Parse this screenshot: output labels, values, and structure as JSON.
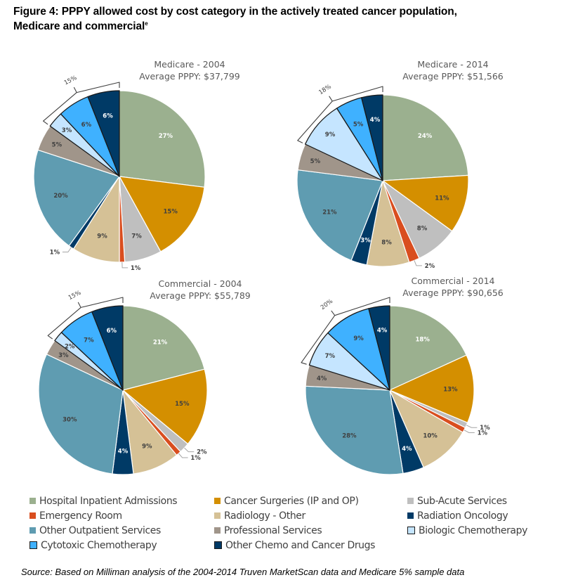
{
  "figure": {
    "title_line1": "Figure 4: PPPY allowed cost by cost category in the actively treated cancer population,",
    "title_line2": "Medicare and commercial",
    "title_footnote_marker": "e",
    "source": "Source: Based on Milliman analysis of the 2004-2014 Truven MarketScan data and Medicare 5% sample data"
  },
  "legend": {
    "items": [
      {
        "label": "Hospital Inpatient Admissions",
        "color": "#9BB08F",
        "outlined": false
      },
      {
        "label": "Cancer Surgeries (IP and OP)",
        "color": "#D48F00",
        "outlined": false
      },
      {
        "label": "Sub-Acute Services",
        "color": "#BFBFBF",
        "outlined": false
      },
      {
        "label": "Emergency Room",
        "color": "#D94E1F",
        "outlined": false
      },
      {
        "label": "Radiology - Other",
        "color": "#D5C196",
        "outlined": false
      },
      {
        "label": "Radiation Oncology",
        "color": "#003A66",
        "outlined": false
      },
      {
        "label": "Other Outpatient Services",
        "color": "#5F9CB1",
        "outlined": false
      },
      {
        "label": "Professional Services",
        "color": "#A0958A",
        "outlined": false
      },
      {
        "label": "Biologic Chemotherapy",
        "color": "#C5E5FF",
        "outlined": true
      },
      {
        "label": "Cytotoxic Chemotherapy",
        "color": "#3FB1FF",
        "outlined": true
      },
      {
        "label": "Other Chemo and Cancer Drugs",
        "color": "#003A66",
        "outlined": true
      }
    ]
  },
  "chart_data": [
    {
      "type": "pie",
      "title": "Medicare - 2004",
      "subtitle": "Average PPPY: $37,799",
      "categories": [
        "Hospital Inpatient Admissions",
        "Cancer Surgeries (IP and OP)",
        "Sub-Acute Services",
        "Emergency Room",
        "Radiology - Other",
        "Radiation Oncology",
        "Other Outpatient Services",
        "Professional Services",
        "Biologic Chemotherapy",
        "Cytotoxic Chemotherapy",
        "Other Chemo and Cancer Drugs"
      ],
      "values": [
        27,
        15,
        7,
        1,
        9,
        1,
        20,
        5,
        3,
        6,
        6
      ],
      "labels": [
        "27%",
        "15%",
        "7%",
        "1%",
        "9%",
        "1%",
        "20%",
        "5%",
        "3%",
        "6%",
        "6%"
      ],
      "bracket": {
        "label": "15%",
        "groups": [
          "Biologic Chemotherapy",
          "Cytotoxic Chemotherapy",
          "Other Chemo and Cancer Drugs"
        ]
      }
    },
    {
      "type": "pie",
      "title": "Medicare - 2014",
      "subtitle": "Average PPPY: $51,566",
      "categories": [
        "Hospital Inpatient Admissions",
        "Cancer Surgeries (IP and OP)",
        "Sub-Acute Services",
        "Emergency Room",
        "Radiology - Other",
        "Radiation Oncology",
        "Other Outpatient Services",
        "Professional Services",
        "Biologic Chemotherapy",
        "Cytotoxic Chemotherapy",
        "Other Chemo and Cancer Drugs"
      ],
      "values": [
        24,
        11,
        8,
        2,
        8,
        3,
        21,
        5,
        9,
        5,
        4
      ],
      "labels": [
        "24%",
        "11%",
        "8%",
        "2%",
        "8%",
        "3%",
        "21%",
        "5%",
        "9%",
        "5%",
        "4%"
      ],
      "bracket": {
        "label": "18%",
        "groups": [
          "Biologic Chemotherapy",
          "Cytotoxic Chemotherapy",
          "Other Chemo and Cancer Drugs"
        ]
      }
    },
    {
      "type": "pie",
      "title": "Commercial - 2004",
      "subtitle": "Average PPPY: $55,789",
      "categories": [
        "Hospital Inpatient Admissions",
        "Cancer Surgeries (IP and OP)",
        "Sub-Acute Services",
        "Emergency Room",
        "Radiology - Other",
        "Radiation Oncology",
        "Other Outpatient Services",
        "Professional Services",
        "Biologic Chemotherapy",
        "Cytotoxic Chemotherapy",
        "Other Chemo and Cancer Drugs"
      ],
      "values": [
        21,
        15,
        2,
        1,
        9,
        4,
        30,
        3,
        2,
        7,
        6
      ],
      "labels": [
        "21%",
        "15%",
        "2%",
        "1%",
        "9%",
        "4%",
        "30%",
        "3%",
        "2%",
        "7%",
        "6%"
      ],
      "bracket": {
        "label": "15%",
        "groups": [
          "Biologic Chemotherapy",
          "Cytotoxic Chemotherapy",
          "Other Chemo and Cancer Drugs"
        ]
      }
    },
    {
      "type": "pie",
      "title": "Commercial - 2014",
      "subtitle": "Average PPPY: $90,656",
      "categories": [
        "Hospital Inpatient Admissions",
        "Cancer Surgeries (IP and OP)",
        "Sub-Acute Services",
        "Emergency Room",
        "Radiology - Other",
        "Radiation Oncology",
        "Other Outpatient Services",
        "Professional Services",
        "Biologic Chemotherapy",
        "Cytotoxic Chemotherapy",
        "Other Chemo and Cancer Drugs"
      ],
      "values": [
        18,
        13,
        1,
        1,
        10,
        4,
        28,
        4,
        7,
        9,
        4
      ],
      "labels": [
        "18%",
        "13%",
        "1%",
        "1%",
        "10%",
        "4%",
        "28%",
        "4%",
        "7%",
        "9%",
        "4%"
      ],
      "bracket": {
        "label": "20%",
        "groups": [
          "Biologic Chemotherapy",
          "Cytotoxic Chemotherapy",
          "Other Chemo and Cancer Drugs"
        ]
      }
    }
  ]
}
